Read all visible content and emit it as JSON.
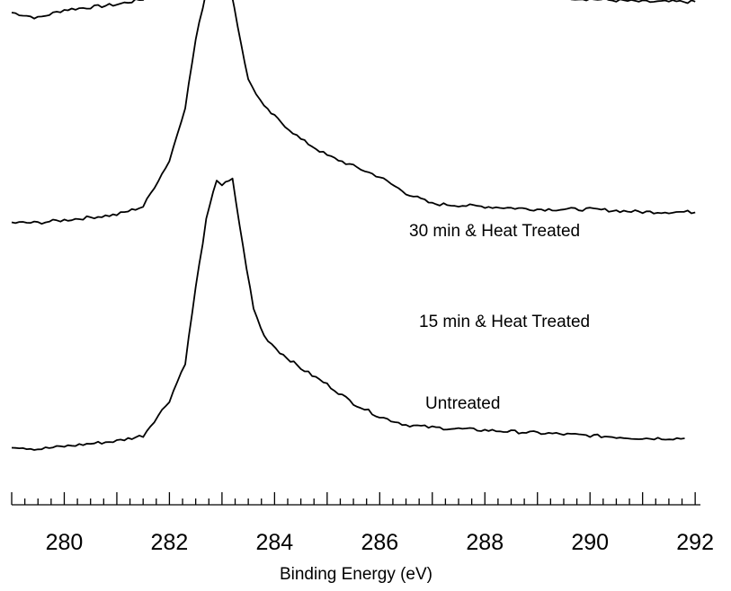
{
  "chart_data": {
    "type": "line",
    "xlabel": "Binding Energy (eV)",
    "ylabel": "",
    "xlim": [
      279,
      292.1
    ],
    "x_ticks": [
      280,
      282,
      284,
      286,
      288,
      290,
      292
    ],
    "grid": false,
    "y_ticks_shown": false,
    "series": [
      {
        "name": "30 min & Heat Treated",
        "offset": 1.6,
        "points": [
          [
            279,
            0.02
          ],
          [
            279.5,
            0.0
          ],
          [
            280,
            0.03
          ],
          [
            280.5,
            0.04
          ],
          [
            281,
            0.05
          ],
          [
            281.5,
            0.07
          ],
          [
            282,
            0.18
          ],
          [
            282.3,
            0.35
          ],
          [
            282.5,
            0.6
          ],
          [
            282.7,
            0.85
          ],
          [
            282.9,
            0.98
          ],
          [
            283.0,
            1.0
          ],
          [
            283.2,
            0.93
          ],
          [
            283.4,
            0.76
          ],
          [
            283.7,
            0.58
          ],
          [
            284,
            0.47
          ],
          [
            284.5,
            0.38
          ],
          [
            285,
            0.3
          ],
          [
            285.5,
            0.22
          ],
          [
            286,
            0.16
          ],
          [
            286.5,
            0.11
          ],
          [
            287,
            0.09
          ],
          [
            288,
            0.08
          ],
          [
            289,
            0.08
          ],
          [
            290,
            0.07
          ],
          [
            291,
            0.06
          ],
          [
            292,
            0.06
          ]
        ]
      },
      {
        "name": "15 min & Heat Treated",
        "offset": 0.82,
        "points": [
          [
            279,
            0.02
          ],
          [
            279.5,
            0.02
          ],
          [
            280,
            0.03
          ],
          [
            280.5,
            0.04
          ],
          [
            281,
            0.05
          ],
          [
            281.5,
            0.08
          ],
          [
            282,
            0.25
          ],
          [
            282.3,
            0.45
          ],
          [
            282.5,
            0.7
          ],
          [
            282.7,
            0.88
          ],
          [
            282.9,
            1.0
          ],
          [
            283.1,
            0.96
          ],
          [
            283.3,
            0.75
          ],
          [
            283.5,
            0.55
          ],
          [
            283.8,
            0.45
          ],
          [
            284.2,
            0.38
          ],
          [
            284.5,
            0.33
          ],
          [
            285,
            0.27
          ],
          [
            285.5,
            0.23
          ],
          [
            286,
            0.19
          ],
          [
            286.5,
            0.13
          ],
          [
            287,
            0.09
          ],
          [
            288,
            0.08
          ],
          [
            289,
            0.07
          ],
          [
            290,
            0.07
          ],
          [
            291,
            0.06
          ],
          [
            292,
            0.06
          ]
        ]
      },
      {
        "name": "Untreated",
        "offset": 0.0,
        "points": [
          [
            279,
            0.01
          ],
          [
            279.5,
            0.0
          ],
          [
            280,
            0.01
          ],
          [
            280.5,
            0.02
          ],
          [
            281,
            0.03
          ],
          [
            281.5,
            0.05
          ],
          [
            282,
            0.18
          ],
          [
            282.3,
            0.32
          ],
          [
            282.5,
            0.6
          ],
          [
            282.7,
            0.85
          ],
          [
            282.9,
            1.0
          ],
          [
            283.0,
            0.98
          ],
          [
            283.2,
            1.0
          ],
          [
            283.4,
            0.75
          ],
          [
            283.6,
            0.52
          ],
          [
            283.8,
            0.42
          ],
          [
            284.1,
            0.36
          ],
          [
            284.5,
            0.3
          ],
          [
            285,
            0.24
          ],
          [
            285.5,
            0.17
          ],
          [
            286,
            0.12
          ],
          [
            286.5,
            0.09
          ],
          [
            287,
            0.08
          ],
          [
            288,
            0.07
          ],
          [
            289,
            0.06
          ],
          [
            290,
            0.05
          ],
          [
            291,
            0.04
          ],
          [
            291.8,
            0.04
          ]
        ]
      }
    ]
  }
}
